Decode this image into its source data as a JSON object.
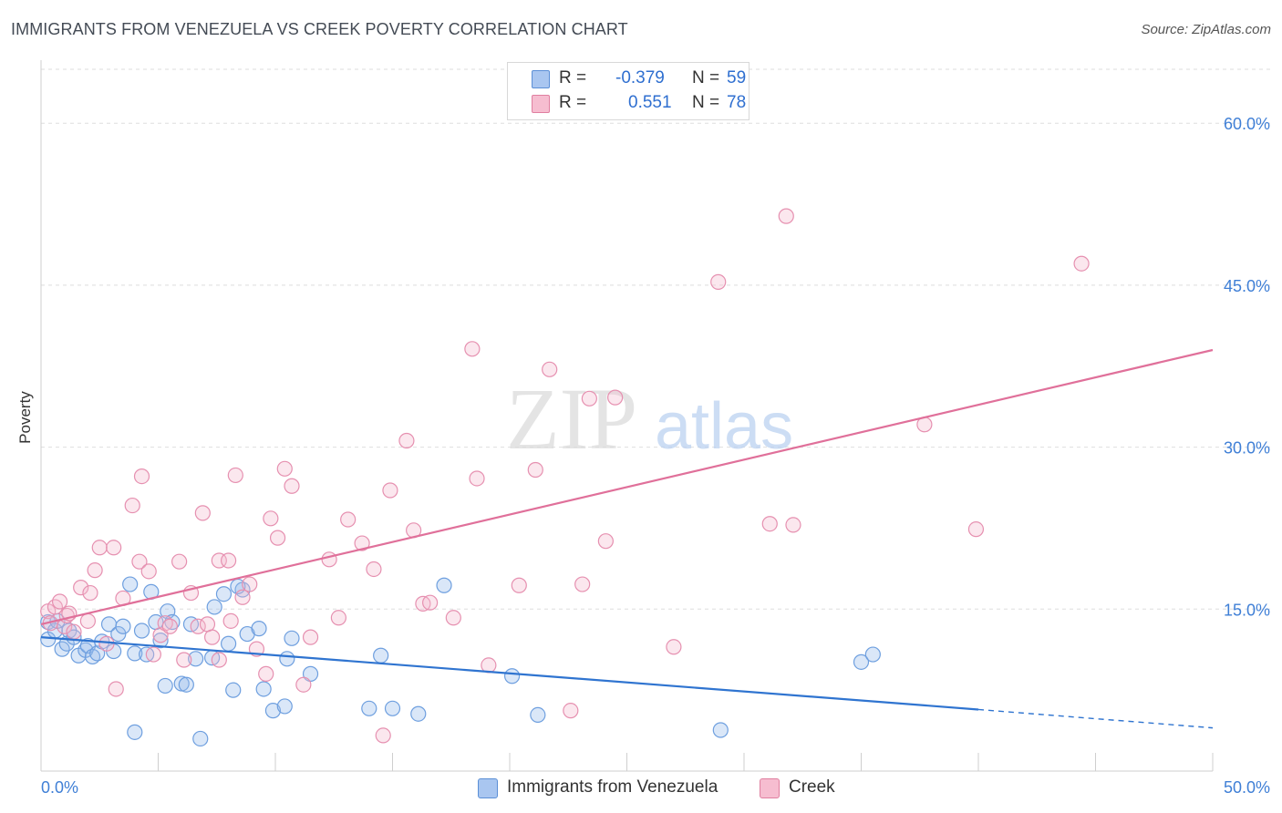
{
  "title": "IMMIGRANTS FROM VENEZUELA VS CREEK POVERTY CORRELATION CHART",
  "source": "Source: ZipAtlas.com",
  "watermark": {
    "zip": "ZIP",
    "atlas": "atlas"
  },
  "legend_top": {
    "rows": [
      {
        "r_label": "R =",
        "r_value": "-0.379",
        "n_label": "N =",
        "n_value": "59",
        "color": "#a9c6f0",
        "border": "#5b8fd6"
      },
      {
        "r_label": "R =",
        "r_value": "0.551",
        "n_label": "N =",
        "n_value": "78",
        "color": "#f6bdd0",
        "border": "#e07fa0"
      }
    ]
  },
  "legend_bottom": [
    {
      "label": "Immigrants from Venezuela",
      "color": "#a9c6f0",
      "border": "#5b8fd6"
    },
    {
      "label": "Creek",
      "color": "#f6bdd0",
      "border": "#e07fa0"
    }
  ],
  "chart_data": {
    "type": "scatter",
    "title": "IMMIGRANTS FROM VENEZUELA VS CREEK POVERTY CORRELATION CHART",
    "xlabel": "",
    "ylabel": "Poverty",
    "xlim": [
      0,
      50
    ],
    "ylim": [
      0,
      65
    ],
    "x_tick_labels": [
      "0.0%",
      "50.0%"
    ],
    "y_ticks": [
      15,
      30,
      45,
      60
    ],
    "y_tick_labels": [
      "15.0%",
      "30.0%",
      "45.0%",
      "60.0%"
    ],
    "grid": true,
    "legend_position": "top-center",
    "series": [
      {
        "name": "Immigrants from Venezuela",
        "color": "#6e9fdf",
        "fill": "rgba(150,185,235,0.35)",
        "trend_color": "#2f74d0",
        "trend": {
          "x0": 0,
          "y0": 12.4,
          "x1": 40,
          "y1": 5.7,
          "dash_x1": 50,
          "dash_y1": 4.0
        },
        "points": [
          [
            0.3,
            13.8
          ],
          [
            0.3,
            12.2
          ],
          [
            0.6,
            13.0
          ],
          [
            0.7,
            13.9
          ],
          [
            0.9,
            11.3
          ],
          [
            1.1,
            11.8
          ],
          [
            1.2,
            13.0
          ],
          [
            1.4,
            12.4
          ],
          [
            1.6,
            10.7
          ],
          [
            1.9,
            11.2
          ],
          [
            2.0,
            11.6
          ],
          [
            2.2,
            10.6
          ],
          [
            2.4,
            10.9
          ],
          [
            2.6,
            12.0
          ],
          [
            2.9,
            13.6
          ],
          [
            3.1,
            11.1
          ],
          [
            3.3,
            12.7
          ],
          [
            3.5,
            13.4
          ],
          [
            3.8,
            17.3
          ],
          [
            4.0,
            10.9
          ],
          [
            4.3,
            13.0
          ],
          [
            4.5,
            10.8
          ],
          [
            4.7,
            16.6
          ],
          [
            4.9,
            13.8
          ],
          [
            5.1,
            12.1
          ],
          [
            5.3,
            7.9
          ],
          [
            5.4,
            14.8
          ],
          [
            5.6,
            13.8
          ],
          [
            6.0,
            8.1
          ],
          [
            6.2,
            8.0
          ],
          [
            6.4,
            13.6
          ],
          [
            6.6,
            10.4
          ],
          [
            6.8,
            3.0
          ],
          [
            7.3,
            10.5
          ],
          [
            7.4,
            15.2
          ],
          [
            7.8,
            16.4
          ],
          [
            8.0,
            11.8
          ],
          [
            8.2,
            7.5
          ],
          [
            8.6,
            16.8
          ],
          [
            8.8,
            12.7
          ],
          [
            9.3,
            13.2
          ],
          [
            9.5,
            7.6
          ],
          [
            9.9,
            5.6
          ],
          [
            10.4,
            6.0
          ],
          [
            10.5,
            10.4
          ],
          [
            10.7,
            12.3
          ],
          [
            11.5,
            9.0
          ],
          [
            14.0,
            5.8
          ],
          [
            14.5,
            10.7
          ],
          [
            15.0,
            5.8
          ],
          [
            16.1,
            5.3
          ],
          [
            17.2,
            17.2
          ],
          [
            20.1,
            8.8
          ],
          [
            21.2,
            5.2
          ],
          [
            29.0,
            3.8
          ],
          [
            35.0,
            10.1
          ],
          [
            35.5,
            10.8
          ],
          [
            4.0,
            3.6
          ],
          [
            8.4,
            17.1
          ]
        ]
      },
      {
        "name": "Creek",
        "color": "#e690b0",
        "fill": "rgba(244,185,205,0.35)",
        "trend_color": "#e0709a",
        "trend": {
          "x0": 0,
          "y0": 13.6,
          "x1": 50,
          "y1": 39.0
        },
        "points": [
          [
            0.3,
            14.8
          ],
          [
            0.4,
            13.7
          ],
          [
            0.6,
            15.2
          ],
          [
            0.8,
            15.7
          ],
          [
            1.0,
            13.4
          ],
          [
            1.1,
            14.4
          ],
          [
            1.2,
            14.6
          ],
          [
            1.4,
            12.9
          ],
          [
            1.7,
            17.0
          ],
          [
            2.0,
            13.9
          ],
          [
            2.1,
            16.5
          ],
          [
            2.3,
            18.6
          ],
          [
            2.5,
            20.7
          ],
          [
            2.8,
            11.8
          ],
          [
            3.1,
            20.7
          ],
          [
            3.2,
            7.6
          ],
          [
            3.5,
            16.0
          ],
          [
            3.9,
            24.6
          ],
          [
            4.2,
            19.4
          ],
          [
            4.3,
            27.3
          ],
          [
            4.6,
            18.5
          ],
          [
            4.8,
            10.8
          ],
          [
            5.1,
            12.6
          ],
          [
            5.3,
            13.7
          ],
          [
            5.5,
            13.4
          ],
          [
            5.9,
            19.4
          ],
          [
            6.1,
            10.3
          ],
          [
            6.4,
            16.5
          ],
          [
            6.7,
            13.4
          ],
          [
            6.9,
            23.9
          ],
          [
            7.1,
            13.6
          ],
          [
            7.3,
            12.4
          ],
          [
            7.6,
            10.3
          ],
          [
            8.1,
            13.9
          ],
          [
            8.3,
            27.4
          ],
          [
            8.6,
            16.1
          ],
          [
            8.9,
            17.3
          ],
          [
            9.2,
            11.3
          ],
          [
            9.6,
            9.0
          ],
          [
            9.8,
            23.4
          ],
          [
            10.1,
            21.6
          ],
          [
            10.4,
            28.0
          ],
          [
            10.7,
            26.4
          ],
          [
            11.2,
            8.0
          ],
          [
            11.5,
            12.4
          ],
          [
            12.3,
            19.6
          ],
          [
            12.7,
            14.2
          ],
          [
            13.1,
            23.3
          ],
          [
            13.7,
            21.1
          ],
          [
            14.2,
            18.7
          ],
          [
            14.6,
            3.3
          ],
          [
            14.9,
            26.0
          ],
          [
            15.6,
            30.6
          ],
          [
            15.9,
            22.3
          ],
          [
            16.3,
            15.5
          ],
          [
            16.6,
            15.6
          ],
          [
            17.6,
            14.2
          ],
          [
            18.4,
            39.1
          ],
          [
            18.6,
            27.1
          ],
          [
            19.1,
            9.8
          ],
          [
            20.4,
            17.2
          ],
          [
            21.1,
            27.9
          ],
          [
            21.7,
            37.2
          ],
          [
            22.6,
            5.6
          ],
          [
            23.1,
            17.3
          ],
          [
            23.4,
            34.5
          ],
          [
            24.1,
            21.3
          ],
          [
            24.5,
            34.6
          ],
          [
            27.0,
            11.5
          ],
          [
            28.9,
            45.3
          ],
          [
            31.1,
            22.9
          ],
          [
            31.8,
            51.4
          ],
          [
            32.1,
            22.8
          ],
          [
            37.7,
            32.1
          ],
          [
            39.9,
            22.4
          ],
          [
            44.4,
            47.0
          ],
          [
            7.6,
            19.5
          ],
          [
            8.0,
            19.5
          ]
        ]
      }
    ]
  }
}
